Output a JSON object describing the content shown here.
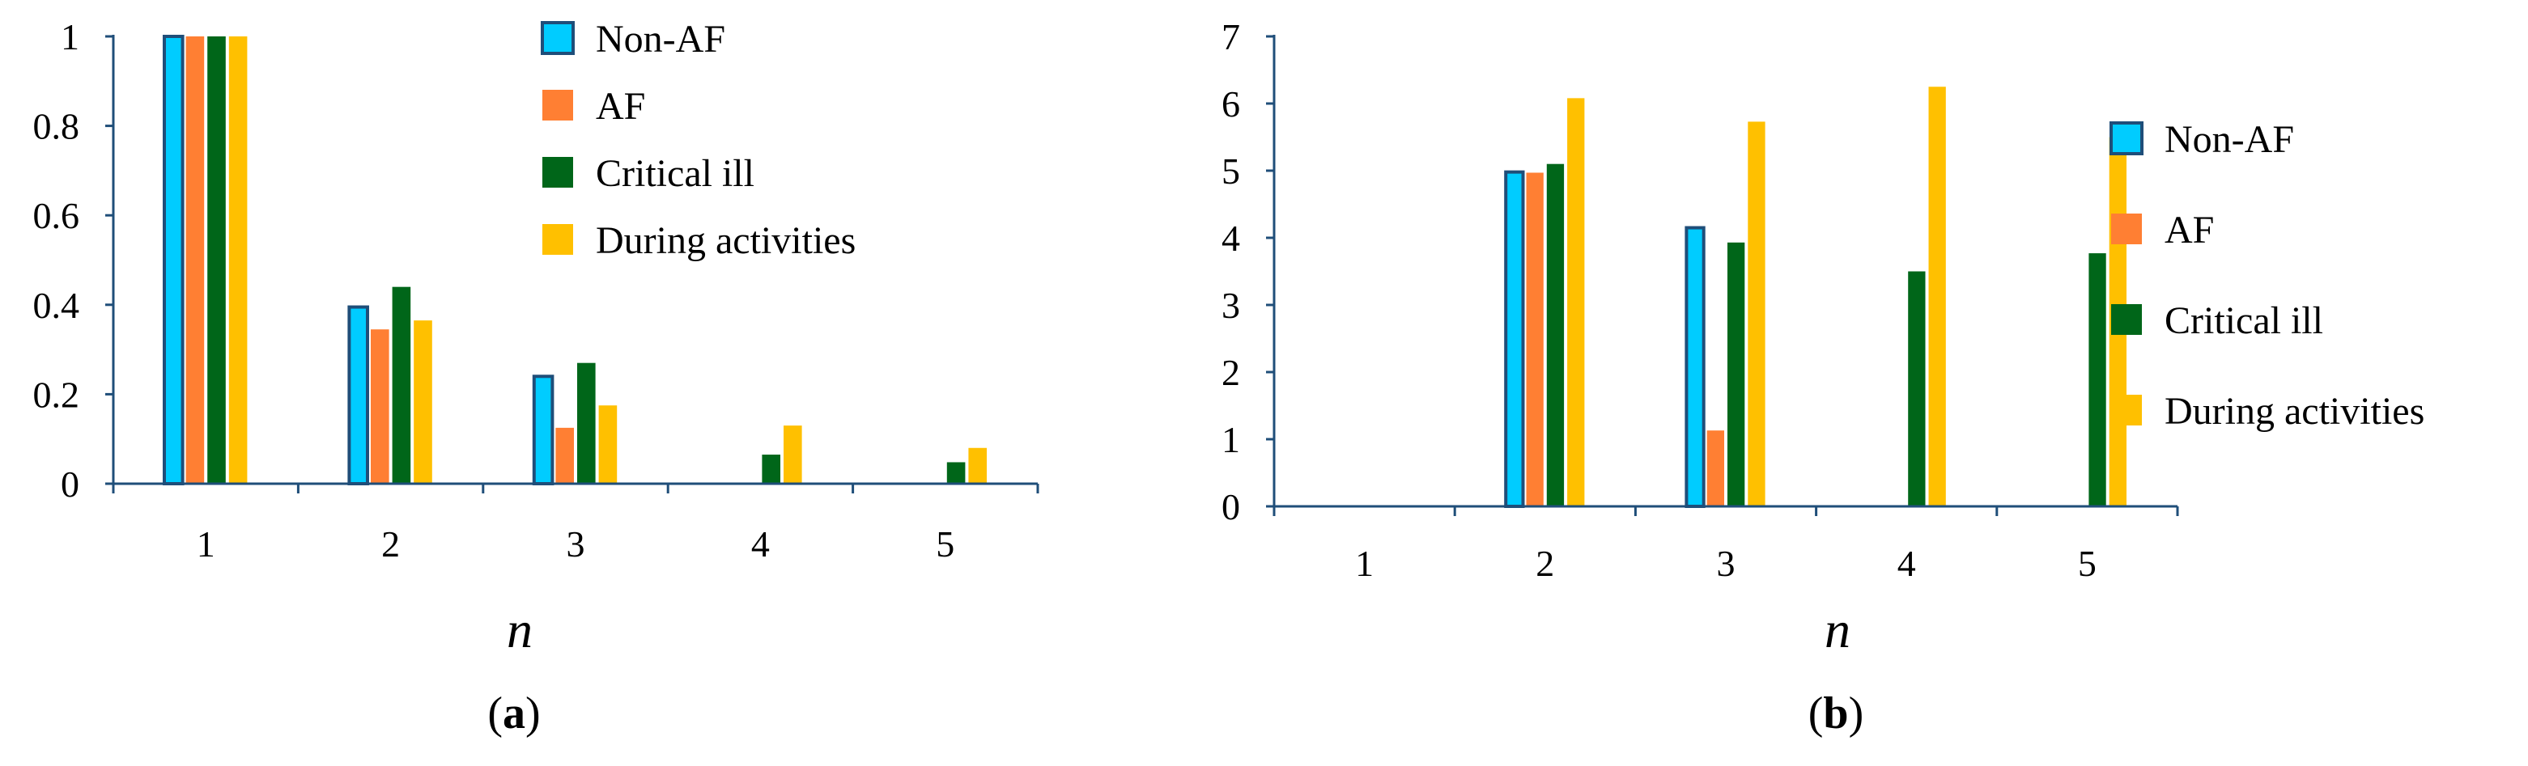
{
  "colors": {
    "Non-AF": "#00CCFF",
    "AF": "#FF7F33",
    "Critical ill": "#006619",
    "During activities": "#FFC000",
    "axis": "#1F4E79",
    "bar_edge": "#1F4E79"
  },
  "chart_data": [
    {
      "type": "bar",
      "title": "",
      "panel_label": {
        "open": "(",
        "letter": "a",
        "close": ")"
      },
      "xlabel": "n",
      "ylabel": "",
      "categories": [
        "1",
        "2",
        "3",
        "4",
        "5"
      ],
      "ylim": [
        0,
        1
      ],
      "yticks": [
        "0",
        "0.2",
        "0.4",
        "0.6",
        "0.8",
        "1"
      ],
      "ytick_values": [
        0,
        0.2,
        0.4,
        0.6,
        0.8,
        1
      ],
      "grid": false,
      "legend_position": "top-right",
      "series": [
        {
          "name": "Non-AF",
          "values": [
            1.0,
            0.395,
            0.24,
            null,
            null
          ]
        },
        {
          "name": "AF",
          "values": [
            1.0,
            0.345,
            0.125,
            null,
            null
          ]
        },
        {
          "name": "Critical ill",
          "values": [
            1.0,
            0.44,
            0.27,
            0.065,
            0.048
          ]
        },
        {
          "name": "During activities",
          "values": [
            1.0,
            0.365,
            0.175,
            0.13,
            0.08
          ]
        }
      ]
    },
    {
      "type": "bar",
      "title": "",
      "panel_label": {
        "open": "(",
        "letter": "b",
        "close": ")"
      },
      "xlabel": "n",
      "ylabel": "",
      "categories": [
        "1",
        "2",
        "3",
        "4",
        "5"
      ],
      "ylim": [
        0,
        7
      ],
      "yticks": [
        "0",
        "1",
        "2",
        "3",
        "4",
        "5",
        "6",
        "7"
      ],
      "ytick_values": [
        0,
        1,
        2,
        3,
        4,
        5,
        6,
        7
      ],
      "grid": false,
      "legend_position": "right",
      "series": [
        {
          "name": "Non-AF",
          "values": [
            null,
            4.98,
            4.15,
            null,
            null
          ]
        },
        {
          "name": "AF",
          "values": [
            null,
            4.97,
            1.13,
            null,
            null
          ]
        },
        {
          "name": "Critical ill",
          "values": [
            null,
            5.1,
            3.93,
            3.5,
            3.77
          ]
        },
        {
          "name": "During activities",
          "values": [
            null,
            6.08,
            5.73,
            6.25,
            5.5
          ]
        }
      ]
    }
  ]
}
